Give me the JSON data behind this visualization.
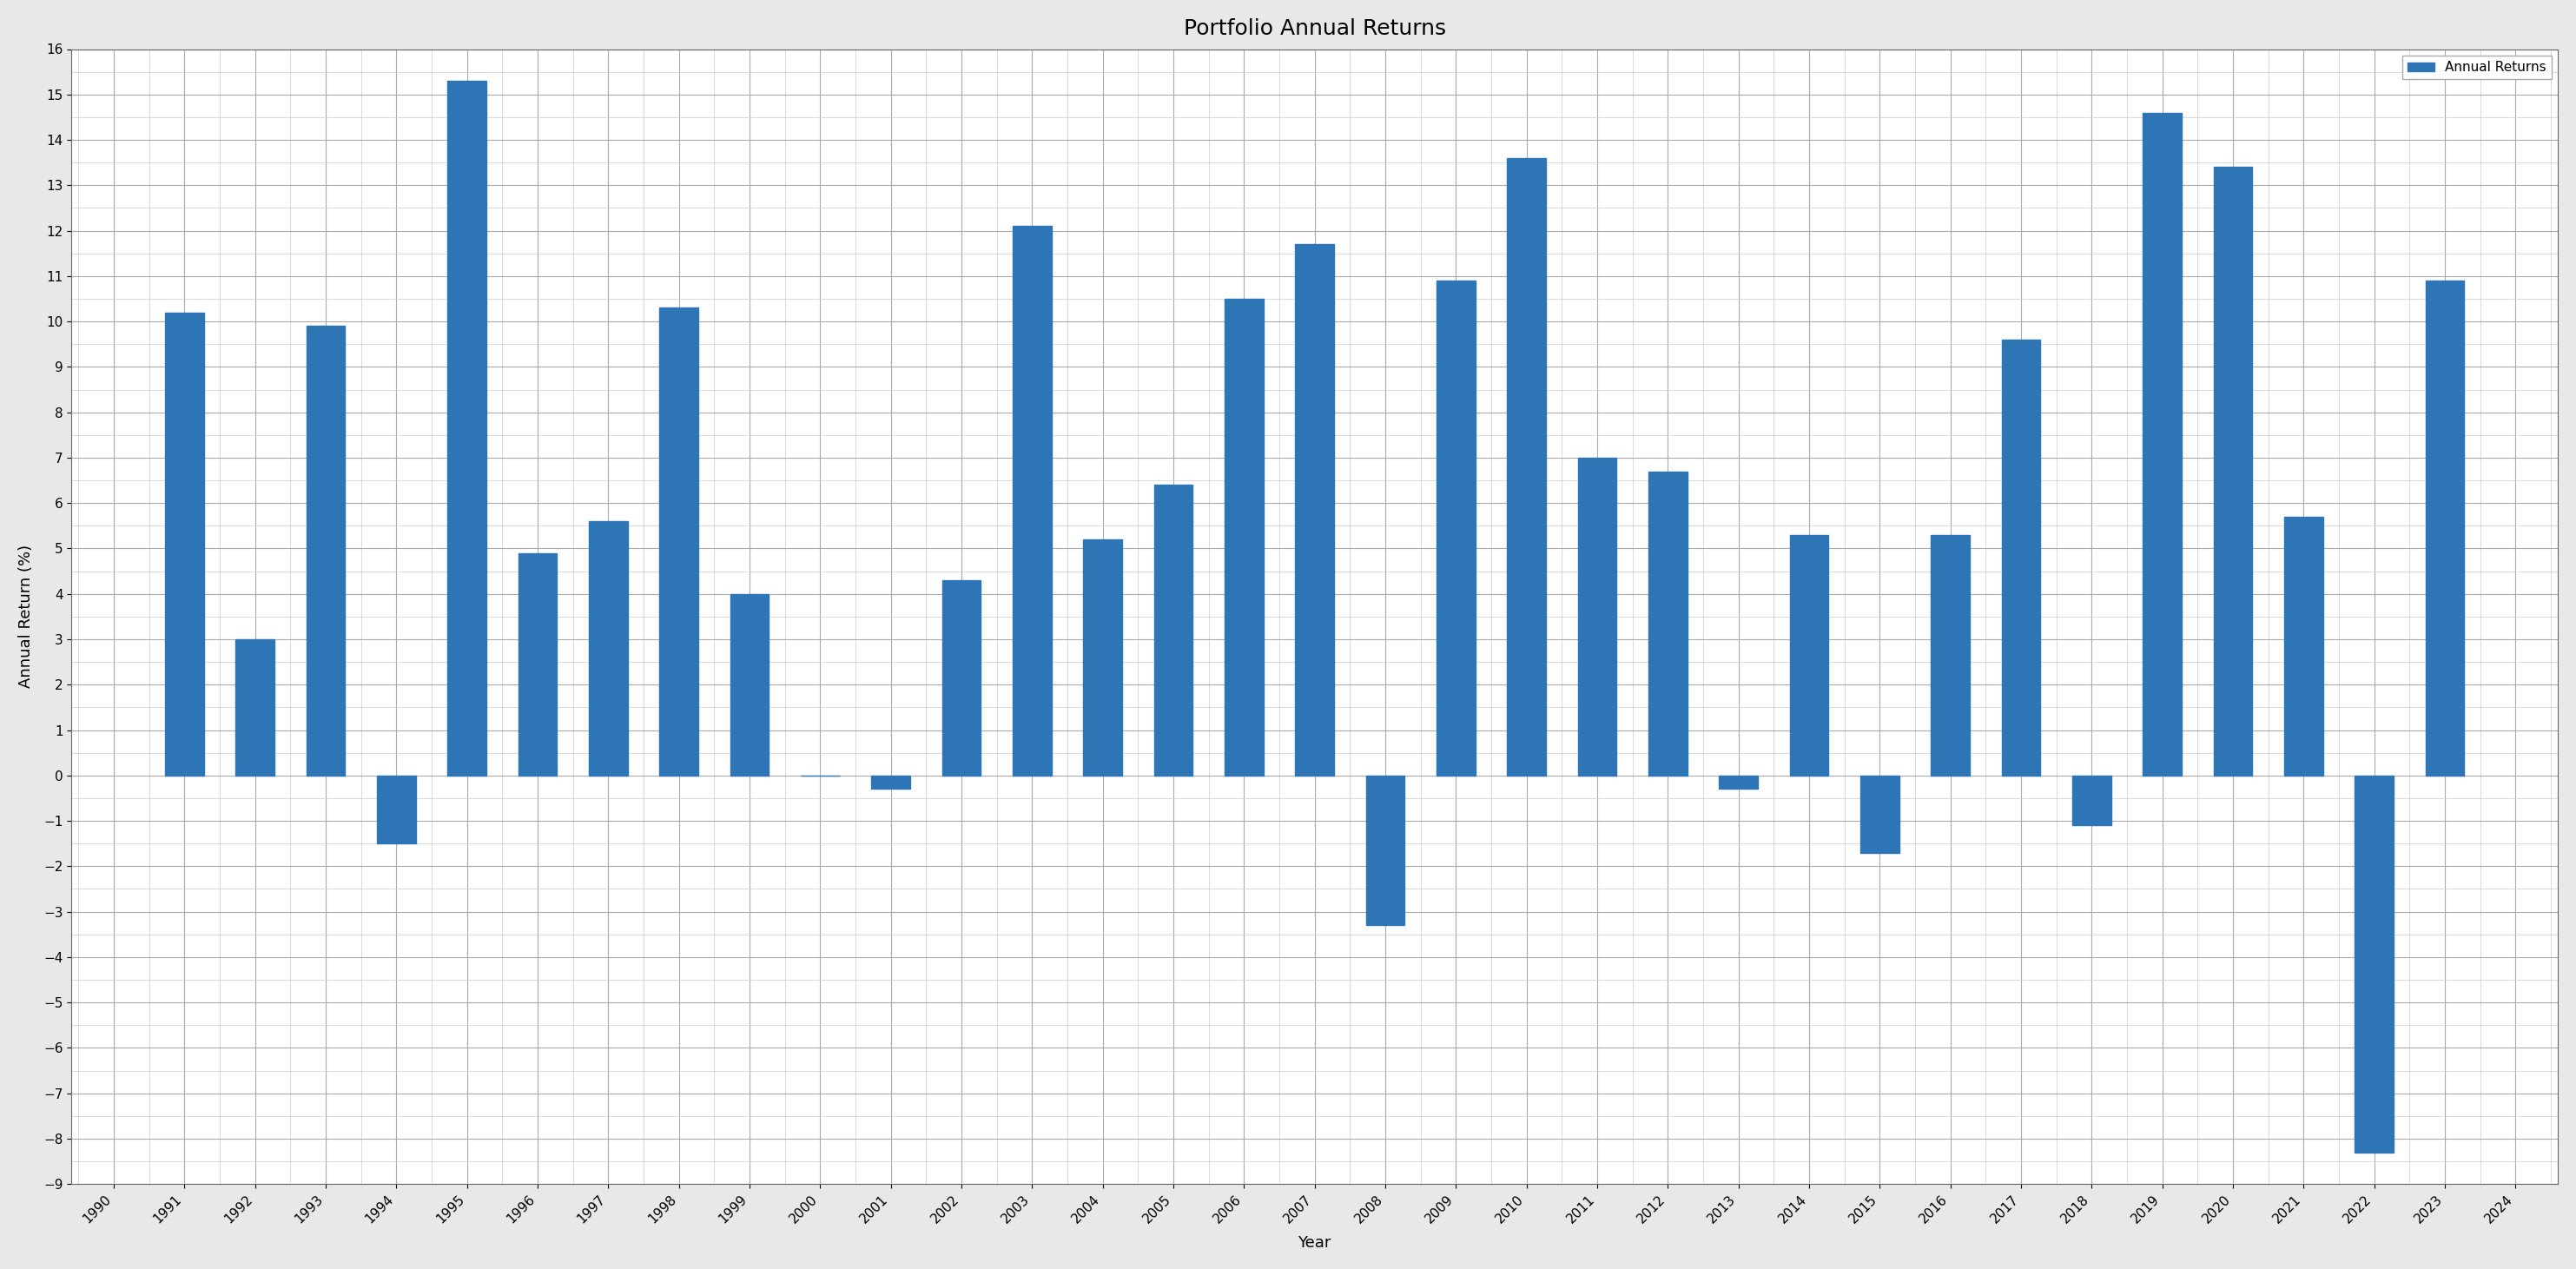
{
  "years": [
    1990,
    1991,
    1992,
    1993,
    1994,
    1995,
    1996,
    1997,
    1998,
    1999,
    2000,
    2001,
    2002,
    2003,
    2004,
    2005,
    2006,
    2007,
    2008,
    2009,
    2010,
    2011,
    2012,
    2013,
    2014,
    2015,
    2016,
    2017,
    2018,
    2019,
    2020,
    2021,
    2022,
    2023,
    2024
  ],
  "returns": [
    0.0,
    10.2,
    3.0,
    9.9,
    -1.5,
    15.3,
    4.9,
    5.6,
    10.3,
    4.0,
    0.0,
    -0.3,
    4.3,
    12.1,
    5.2,
    6.4,
    10.5,
    11.7,
    -3.3,
    10.9,
    13.6,
    7.0,
    6.7,
    -0.3,
    5.3,
    -1.7,
    5.3,
    9.6,
    -1.1,
    14.6,
    13.4,
    5.7,
    -8.3,
    10.9,
    0.0
  ],
  "no_bar_years": [
    1990,
    2024
  ],
  "bar_color": "#2e75b6",
  "title": "Portfolio Annual Returns",
  "xlabel": "Year",
  "ylabel": "Annual Return (%)",
  "ylim": [
    -9,
    16
  ],
  "yticks_major": [
    -9,
    -8,
    -7,
    -6,
    -5,
    -4,
    -3,
    -2,
    -1,
    0,
    1,
    2,
    3,
    4,
    5,
    6,
    7,
    8,
    9,
    10,
    11,
    12,
    13,
    14,
    15,
    16
  ],
  "legend_label": "Annual Returns",
  "title_fontsize": 18,
  "axis_fontsize": 13,
  "tick_fontsize": 11,
  "background_color": "#e8e8e8",
  "plot_background": "#ffffff",
  "major_grid_color": "#aaaaaa",
  "minor_grid_color": "#cccccc",
  "major_grid_lw": 0.8,
  "minor_grid_lw": 0.5,
  "bar_width": 0.55,
  "xlim_left": 1989.4,
  "xlim_right": 2024.6
}
